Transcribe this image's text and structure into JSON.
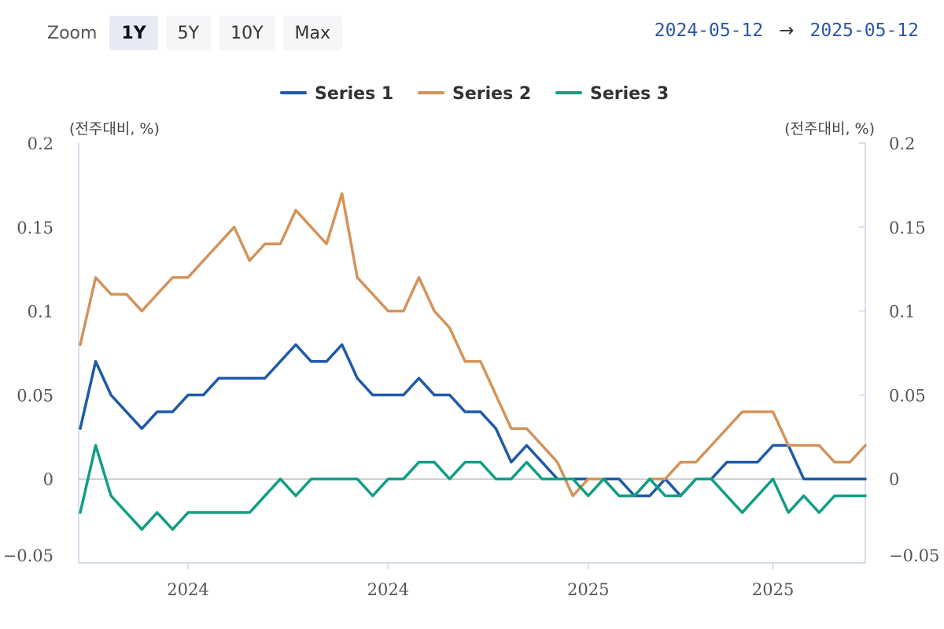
{
  "toolbar": {
    "zoom_label": "Zoom",
    "zoom_options": [
      "1Y",
      "5Y",
      "10Y",
      "Max"
    ],
    "active_zoom": "1Y",
    "range_start": "2024-05-12",
    "range_arrow": "→",
    "range_end": "2025-05-12"
  },
  "colors": {
    "series1": "#1e5aa8",
    "series2": "#d4935a",
    "series3": "#119e85",
    "axis": "#c9d3e6",
    "zero_line": "#bdbdbd",
    "active_zoom_bg": "#e5eaf5"
  },
  "chart_data": {
    "type": "line",
    "legend_position": "top-center",
    "grid": false,
    "ylabel_left": "(전주대비, %)",
    "ylabel_right": "(전주대비, %)",
    "ylim": [
      -0.05,
      0.2
    ],
    "yticks": [
      0.2,
      0.15,
      0.1,
      0.05,
      0,
      -0.05
    ],
    "ytick_labels": [
      "0.2",
      "0.15",
      "0.1",
      "0.05",
      "0",
      "−0.05"
    ],
    "xticks": [
      {
        "label": "2024",
        "index": 7
      },
      {
        "label": "2024",
        "index": 20
      },
      {
        "label": "2025",
        "index": 33
      },
      {
        "label": "2025",
        "index": 45
      }
    ],
    "n_points": 52,
    "series": [
      {
        "name": "Series 1",
        "color": "#1e5aa8",
        "values": [
          0.03,
          0.07,
          0.05,
          0.04,
          0.03,
          0.04,
          0.04,
          0.05,
          0.05,
          0.06,
          0.06,
          0.06,
          0.06,
          0.07,
          0.08,
          0.07,
          0.07,
          0.08,
          0.06,
          0.05,
          0.05,
          0.05,
          0.06,
          0.05,
          0.05,
          0.04,
          0.04,
          0.03,
          0.01,
          0.02,
          0.01,
          0.0,
          0.0,
          0.0,
          0.0,
          0.0,
          -0.01,
          -0.01,
          0.0,
          -0.01,
          0.0,
          0.0,
          0.01,
          0.01,
          0.01,
          0.02,
          0.02,
          0.0,
          0.0,
          0.0,
          0.0,
          0.0
        ]
      },
      {
        "name": "Series 2",
        "color": "#d4935a",
        "values": [
          0.08,
          0.12,
          0.11,
          0.11,
          0.1,
          0.11,
          0.12,
          0.12,
          0.13,
          0.14,
          0.15,
          0.13,
          0.14,
          0.14,
          0.16,
          0.15,
          0.14,
          0.17,
          0.12,
          0.11,
          0.1,
          0.1,
          0.12,
          0.1,
          0.09,
          0.07,
          0.07,
          0.05,
          0.03,
          0.03,
          0.02,
          0.01,
          -0.01,
          0.0,
          0.0,
          -0.01,
          -0.01,
          0.0,
          0.0,
          0.01,
          0.01,
          0.02,
          0.03,
          0.04,
          0.04,
          0.04,
          0.02,
          0.02,
          0.02,
          0.01,
          0.01,
          0.02
        ]
      },
      {
        "name": "Series 3",
        "color": "#119e85",
        "values": [
          -0.02,
          0.02,
          -0.01,
          -0.02,
          -0.03,
          -0.02,
          -0.03,
          -0.02,
          -0.02,
          -0.02,
          -0.02,
          -0.02,
          -0.01,
          0.0,
          -0.01,
          0.0,
          0.0,
          0.0,
          0.0,
          -0.01,
          0.0,
          0.0,
          0.01,
          0.01,
          0.0,
          0.01,
          0.01,
          0.0,
          0.0,
          0.01,
          0.0,
          0.0,
          0.0,
          -0.01,
          0.0,
          -0.01,
          -0.01,
          0.0,
          -0.01,
          -0.01,
          0.0,
          0.0,
          -0.01,
          -0.02,
          -0.01,
          0.0,
          -0.02,
          -0.01,
          -0.02,
          -0.01,
          -0.01,
          -0.01
        ]
      }
    ]
  }
}
